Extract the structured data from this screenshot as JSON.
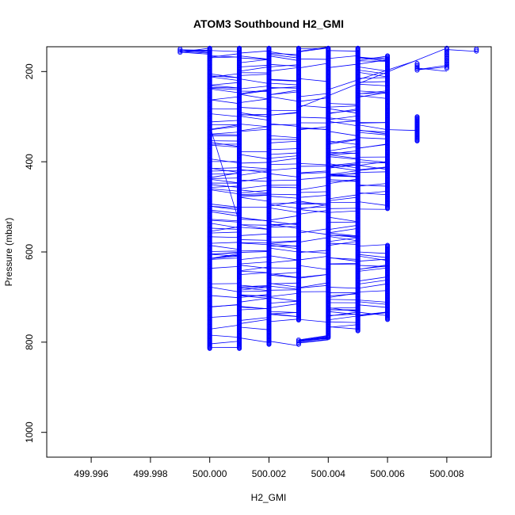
{
  "chart_data": {
    "type": "scatter",
    "title": "ATOM3 Southbound H2_GMI",
    "xlabel": "H2_GMI",
    "ylabel": "Pressure (mbar)",
    "xlim": [
      499.9945,
      500.0095
    ],
    "ylim": [
      1055,
      145
    ],
    "y_reversed": true,
    "grid": false,
    "legend": "none",
    "x_ticks": [
      {
        "value": 499.996,
        "label": "499.996"
      },
      {
        "value": 499.998,
        "label": "499.998"
      },
      {
        "value": 500.0,
        "label": "500.000"
      },
      {
        "value": 500.002,
        "label": "500.002"
      },
      {
        "value": 500.004,
        "label": "500.004"
      },
      {
        "value": 500.006,
        "label": "500.006"
      },
      {
        "value": 500.008,
        "label": "500.008"
      }
    ],
    "y_ticks": [
      {
        "value": 200,
        "label": "200"
      },
      {
        "value": 400,
        "label": "400"
      },
      {
        "value": 600,
        "label": "600"
      },
      {
        "value": 800,
        "label": "800"
      },
      {
        "value": 1000,
        "label": "1000"
      }
    ],
    "series_color": "#0000ff",
    "marker": "open-circle",
    "columns": [
      {
        "x": 499.999,
        "p_min": 150,
        "p_max": 158
      },
      {
        "x": 500.0,
        "p_min": 148,
        "p_max": 815
      },
      {
        "x": 500.001,
        "p_min": 148,
        "p_max": 815
      },
      {
        "x": 500.002,
        "p_min": 148,
        "p_max": 805
      },
      {
        "x": 500.003,
        "p_min": 148,
        "p_max": 752
      },
      {
        "x": 500.003,
        "p_min": 795,
        "p_max": 805
      },
      {
        "x": 500.004,
        "p_min": 148,
        "p_max": 790
      },
      {
        "x": 500.005,
        "p_min": 148,
        "p_max": 775
      },
      {
        "x": 500.006,
        "p_min": 165,
        "p_max": 505
      },
      {
        "x": 500.006,
        "p_min": 585,
        "p_max": 750
      },
      {
        "x": 500.007,
        "p_min": 182,
        "p_max": 198
      },
      {
        "x": 500.007,
        "p_min": 300,
        "p_max": 355
      },
      {
        "x": 500.008,
        "p_min": 148,
        "p_max": 195
      },
      {
        "x": 500.009,
        "p_min": 150,
        "p_max": 155
      }
    ],
    "segments": [
      {
        "x1": 500.0,
        "p1": 320,
        "x2": 500.001,
        "p2": 535
      },
      {
        "x1": 500.003,
        "p1": 280,
        "x2": 500.008,
        "p2": 148
      },
      {
        "x1": 500.004,
        "p1": 240,
        "x2": 500.007,
        "p2": 175
      },
      {
        "x1": 500.003,
        "p1": 802,
        "x2": 500.004,
        "p2": 795
      }
    ]
  }
}
